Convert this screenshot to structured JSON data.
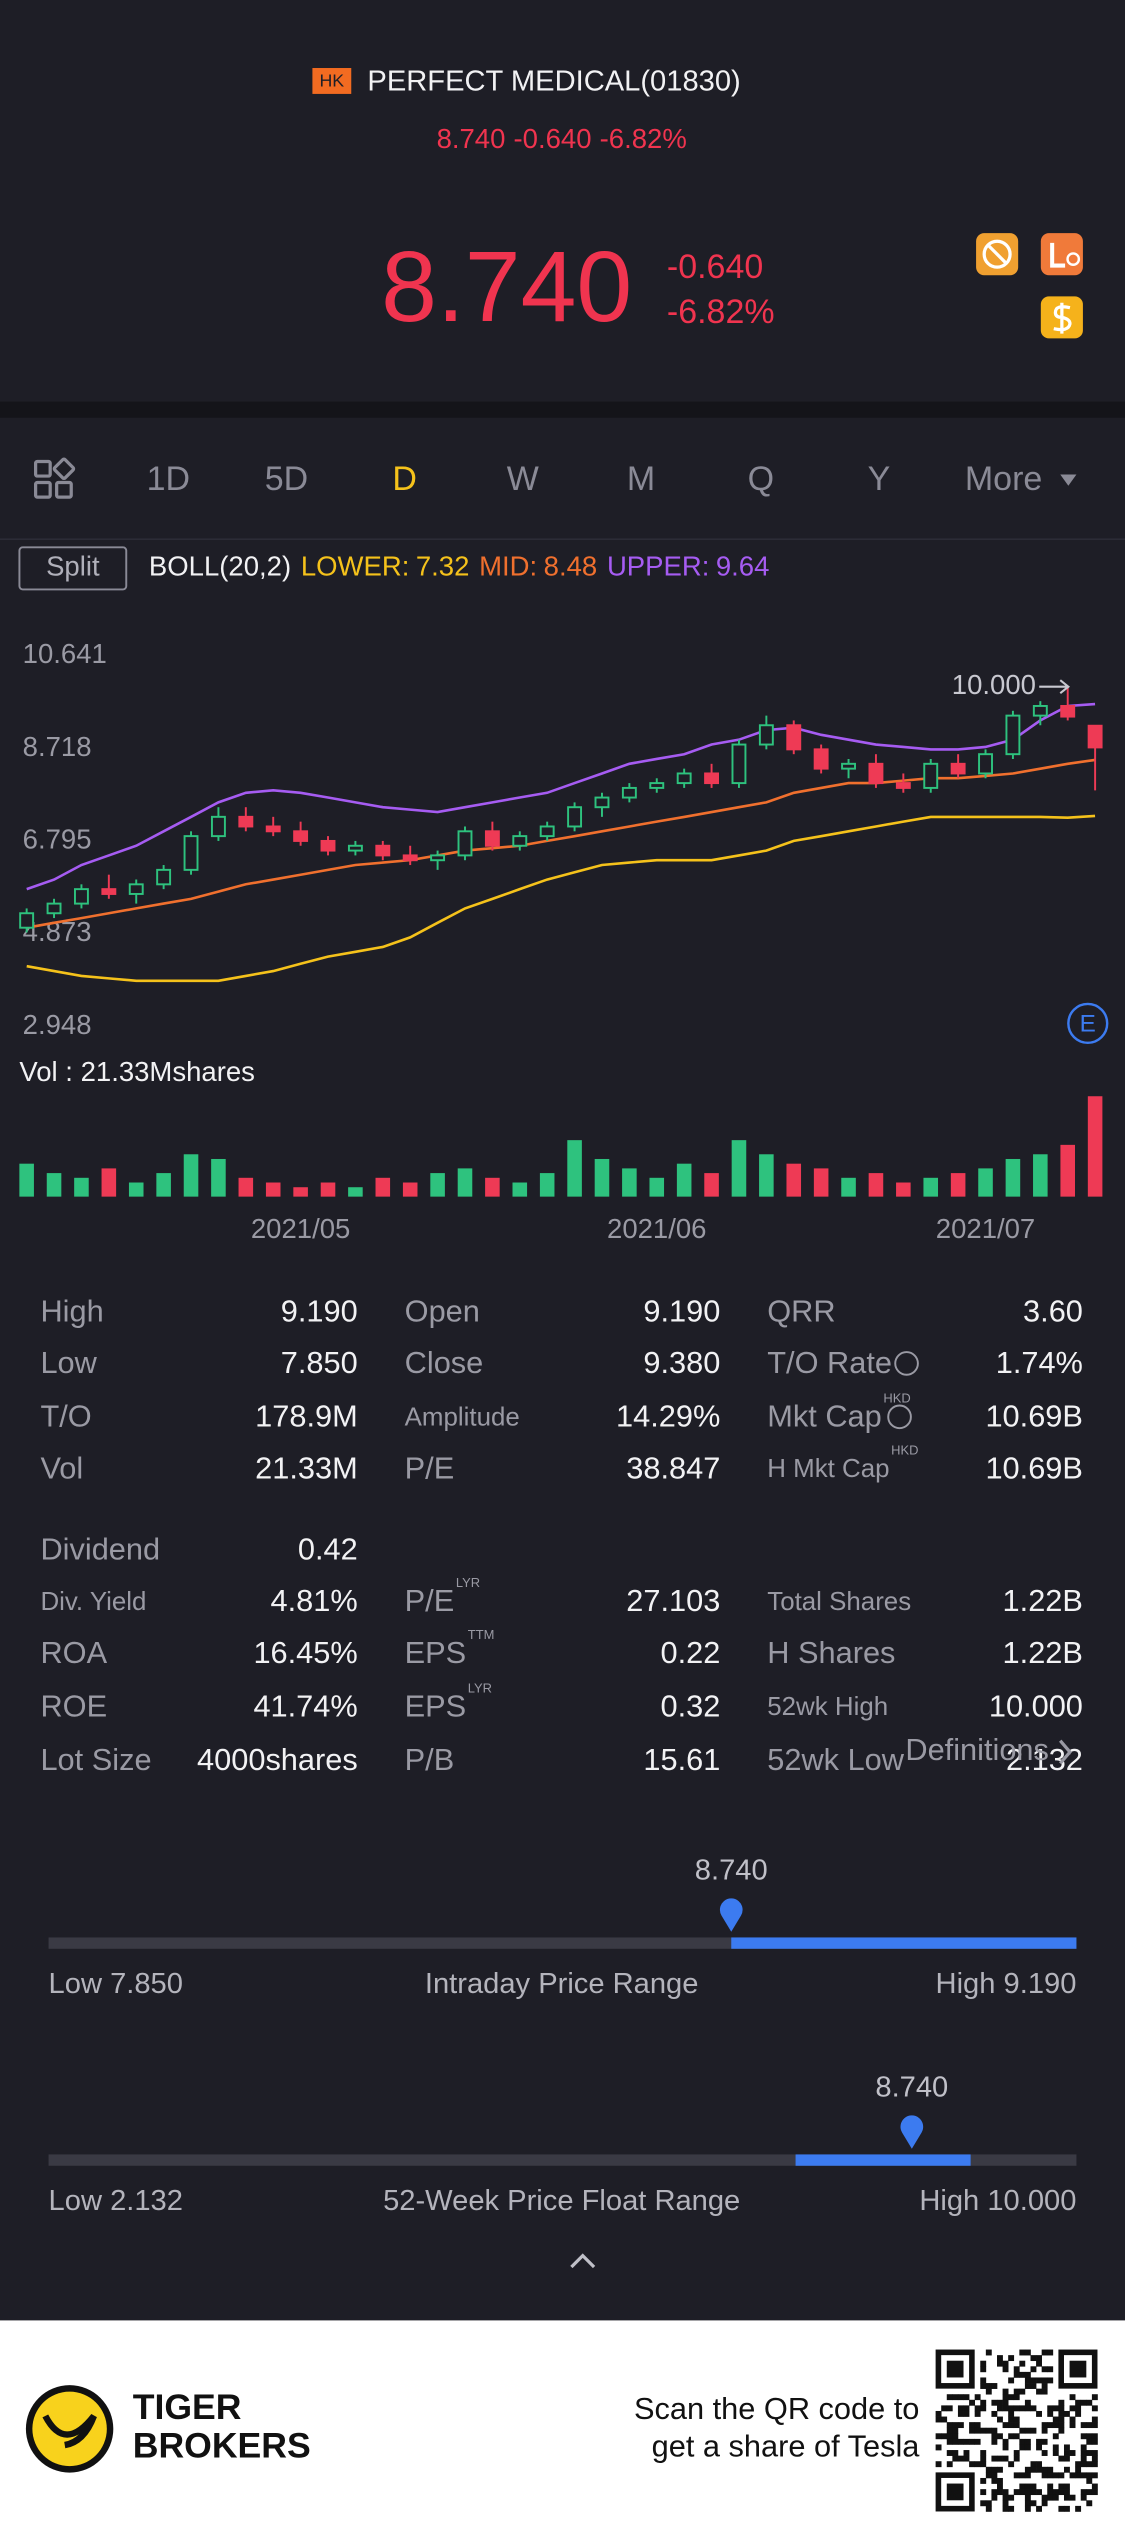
{
  "header": {
    "market": "HK",
    "title": "PERFECT MEDICAL(01830)"
  },
  "quote": {
    "price": "8.740",
    "change": "-0.640",
    "change_pct": "-6.82%"
  },
  "tabs": {
    "items": [
      "1D",
      "5D",
      "D",
      "W",
      "M",
      "Q",
      "Y",
      "More"
    ],
    "active": "D"
  },
  "split": "Split",
  "chart_data": [
    {
      "type": "candlestick",
      "legend_title": "BOLL(20,2)",
      "open": [
        5.0,
        5.3,
        5.5,
        5.8,
        5.7,
        5.9,
        6.2,
        6.9,
        7.3,
        7.1,
        7.0,
        6.8,
        6.6,
        6.7,
        6.5,
        6.4,
        6.5,
        7.0,
        6.7,
        6.9,
        7.1,
        7.5,
        7.7,
        7.9,
        8.0,
        8.2,
        8.0,
        8.8,
        9.2,
        8.7,
        8.3,
        8.4,
        8.0,
        7.9,
        8.4,
        8.2,
        8.6,
        9.4,
        9.6,
        9.19
      ],
      "high": [
        5.4,
        5.6,
        5.9,
        6.1,
        6.0,
        6.3,
        7.0,
        7.5,
        7.5,
        7.3,
        7.2,
        6.9,
        6.8,
        6.8,
        6.7,
        6.6,
        7.1,
        7.2,
        7.0,
        7.2,
        7.6,
        7.8,
        8.0,
        8.1,
        8.3,
        8.4,
        8.9,
        9.4,
        9.3,
        8.8,
        8.5,
        8.6,
        8.2,
        8.5,
        8.6,
        8.7,
        9.5,
        9.7,
        10.0,
        9.19
      ],
      "low": [
        4.9,
        5.2,
        5.4,
        5.6,
        5.5,
        5.8,
        6.1,
        6.8,
        7.0,
        6.9,
        6.7,
        6.5,
        6.5,
        6.4,
        6.3,
        6.2,
        6.4,
        6.6,
        6.6,
        6.8,
        7.0,
        7.3,
        7.6,
        7.8,
        7.9,
        7.9,
        7.9,
        8.7,
        8.6,
        8.2,
        8.1,
        7.9,
        7.8,
        7.8,
        8.1,
        8.1,
        8.5,
        9.2,
        9.3,
        7.85
      ],
      "close": [
        5.3,
        5.5,
        5.8,
        5.7,
        5.9,
        6.2,
        6.9,
        7.3,
        7.1,
        7.0,
        6.8,
        6.6,
        6.7,
        6.5,
        6.4,
        6.5,
        7.0,
        6.7,
        6.9,
        7.1,
        7.5,
        7.7,
        7.9,
        8.0,
        8.2,
        8.0,
        8.8,
        9.2,
        8.7,
        8.3,
        8.4,
        8.0,
        7.9,
        8.4,
        8.2,
        8.6,
        9.4,
        9.6,
        9.38,
        8.74
      ],
      "up_color": "#2ec27e",
      "down_color": "#ee3a55",
      "series": [
        {
          "name": "LOWER:",
          "color": "#f5c21b",
          "last": 7.32,
          "values": [
            4.2,
            4.1,
            4.0,
            3.95,
            3.9,
            3.9,
            3.9,
            3.9,
            4.0,
            4.1,
            4.25,
            4.4,
            4.5,
            4.6,
            4.8,
            5.1,
            5.4,
            5.6,
            5.8,
            6.0,
            6.15,
            6.3,
            6.35,
            6.4,
            6.4,
            6.4,
            6.5,
            6.6,
            6.8,
            6.9,
            7.0,
            7.1,
            7.2,
            7.3,
            7.3,
            7.3,
            7.3,
            7.3,
            7.28,
            7.32
          ]
        },
        {
          "name": "MID:",
          "color": "#f0702e",
          "last": 8.48,
          "values": [
            5.0,
            5.1,
            5.2,
            5.3,
            5.4,
            5.5,
            5.6,
            5.75,
            5.9,
            6.0,
            6.1,
            6.2,
            6.3,
            6.35,
            6.4,
            6.5,
            6.6,
            6.65,
            6.7,
            6.8,
            6.9,
            7.0,
            7.1,
            7.2,
            7.3,
            7.4,
            7.5,
            7.6,
            7.8,
            7.9,
            8.0,
            8.0,
            8.05,
            8.1,
            8.1,
            8.15,
            8.2,
            8.3,
            8.4,
            8.48
          ]
        },
        {
          "name": "UPPER:",
          "color": "#a65cf2",
          "last": 9.64,
          "values": [
            5.8,
            6.0,
            6.3,
            6.5,
            6.7,
            7.0,
            7.3,
            7.6,
            7.8,
            7.85,
            7.8,
            7.7,
            7.6,
            7.5,
            7.45,
            7.4,
            7.5,
            7.6,
            7.7,
            7.8,
            8.0,
            8.2,
            8.4,
            8.5,
            8.6,
            8.8,
            8.9,
            9.1,
            9.15,
            9.0,
            8.9,
            8.8,
            8.75,
            8.7,
            8.7,
            8.75,
            8.9,
            9.3,
            9.6,
            9.64
          ]
        }
      ],
      "ylim": [
        2.948,
        10.641
      ],
      "yticks": [
        2.948,
        4.873,
        6.795,
        8.718,
        10.641
      ],
      "grid": false,
      "annotation": {
        "label": "10.000",
        "value": 10
      },
      "event_marker": "E"
    },
    {
      "type": "bar",
      "title": "Vol : 21.33Mshares",
      "categories": [
        null,
        null,
        null,
        null,
        null,
        null,
        null,
        null,
        null,
        null,
        "2021/05",
        null,
        null,
        null,
        null,
        null,
        null,
        null,
        null,
        null,
        null,
        null,
        null,
        "2021/06",
        null,
        null,
        null,
        null,
        null,
        null,
        null,
        null,
        null,
        null,
        null,
        "2021/07",
        null,
        null,
        null,
        null
      ],
      "values": [
        7,
        5,
        4,
        6,
        3,
        5,
        9,
        8,
        4,
        3,
        2,
        3,
        2,
        4,
        3,
        5,
        6,
        4,
        3,
        5,
        12,
        8,
        6,
        4,
        7,
        5,
        12,
        9,
        7,
        6,
        4,
        5,
        3,
        4,
        5,
        6,
        8,
        9,
        11,
        21.33
      ]
    }
  ],
  "stats": {
    "columns": [
      [
        {
          "label": "High",
          "value": "9.190"
        },
        {
          "label": "Low",
          "value": "7.850"
        },
        {
          "label": "T/O",
          "value": "178.9M"
        },
        {
          "label": "Vol",
          "value": "21.33M"
        },
        {
          "label": "Dividend",
          "value": "0.42"
        },
        {
          "label": "Div. Yield",
          "value": "4.81%"
        },
        {
          "label": "ROA",
          "value": "16.45%"
        },
        {
          "label": "ROE",
          "value": "41.74%"
        },
        {
          "label": "Lot Size",
          "value": "4000shares"
        }
      ],
      [
        {
          "label": "Open",
          "value": "9.190"
        },
        {
          "label": "Close",
          "value": "9.380"
        },
        {
          "label": "Amplitude",
          "value": "14.29%"
        },
        {
          "label": "P/E",
          "value": "38.847"
        },
        {
          "label": "P/E",
          "sup": "LYR",
          "value": "27.103"
        },
        {
          "label": "EPS",
          "sup": "TTM",
          "value": "0.22"
        },
        {
          "label": "EPS",
          "sup": "LYR",
          "value": "0.32"
        },
        {
          "label": "P/B",
          "value": "15.61"
        }
      ],
      [
        {
          "label": "QRR",
          "value": "3.60"
        },
        {
          "label": "T/O Rate",
          "info": true,
          "value": "1.74%"
        },
        {
          "label": "Mkt Cap",
          "sup": "HKD",
          "info": true,
          "value": "10.69B"
        },
        {
          "label": "H Mkt Cap",
          "sup": "HKD",
          "value": "10.69B"
        },
        {
          "label": "Total Shares",
          "value": "1.22B"
        },
        {
          "label": "H Shares",
          "value": "1.22B"
        },
        {
          "label": "52wk High",
          "value": "10.000"
        },
        {
          "label": "52wk Low",
          "value": "2.132"
        }
      ]
    ],
    "definitions": "Definitions"
  },
  "ranges": [
    {
      "title": "Intraday Price Range",
      "current": "8.740",
      "low_label": "Low",
      "low": "7.850",
      "high_label": "High",
      "high": "9.190"
    },
    {
      "title": "52-Week Price Float Range",
      "current": "8.740",
      "low_label": "Low",
      "low": "2.132",
      "high_label": "High",
      "high": "10.000"
    }
  ],
  "footer": {
    "brand": [
      "TIGER",
      "BROKERS"
    ],
    "promo": [
      "Scan the QR code to",
      "get a share of Tesla"
    ]
  }
}
